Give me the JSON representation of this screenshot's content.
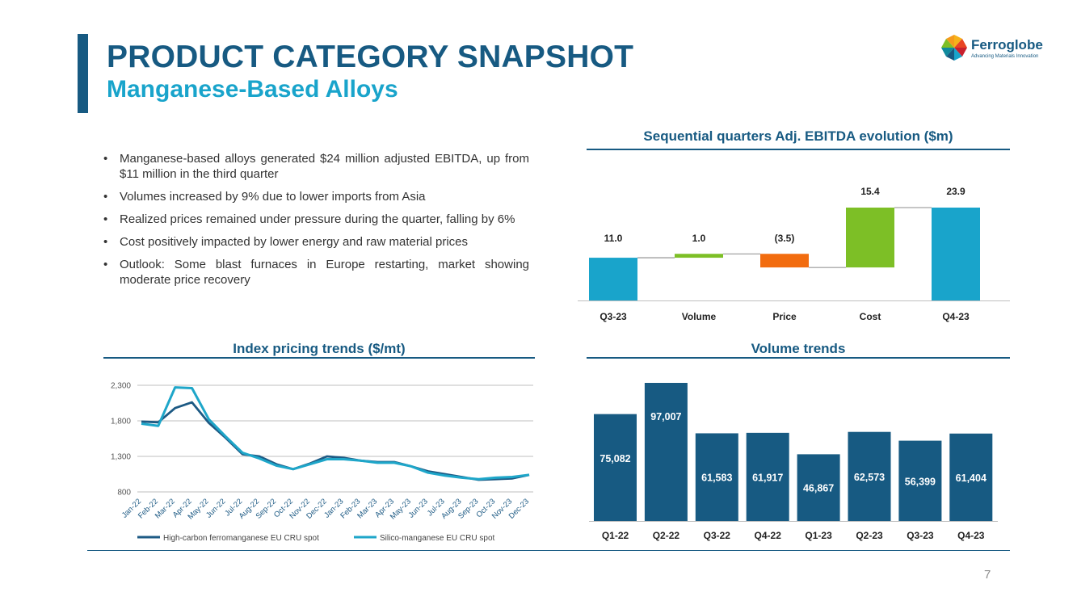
{
  "header": {
    "title": "PRODUCT CATEGORY SNAPSHOT",
    "subtitle": "Manganese-Based Alloys"
  },
  "logo": {
    "name": "Ferroglobe",
    "tagline": "Advancing Materials Innovation"
  },
  "bullets": [
    "Manganese-based alloys generated $24 million adjusted EBITDA, up from $11 million in the third quarter",
    "Volumes increased by 9% due to lower imports from Asia",
    "Realized prices remained under pressure during the quarter, falling by 6%",
    "Cost positively impacted by lower energy and raw material prices",
    "Outlook: Some blast furnaces in Europe restarting, market showing moderate price recovery"
  ],
  "page_number": "7",
  "colors": {
    "navy": "#175a82",
    "cyan": "#19a4cb",
    "green": "#7dbf26",
    "orange": "#f26c0f",
    "dark_series": "#1d5a84",
    "light_series": "#1ea6c9"
  },
  "chart_data": [
    {
      "type": "bar",
      "subtype": "waterfall",
      "title": "Sequential quarters Adj. EBITDA evolution ($m)",
      "categories": [
        "Q3-23",
        "Volume",
        "Price",
        "Cost",
        "Q4-23"
      ],
      "values": [
        11.0,
        1.0,
        -3.5,
        15.4,
        23.9
      ],
      "labels": [
        "11.0",
        "1.0",
        "(3.5)",
        "15.4",
        "23.9"
      ],
      "kinds": [
        "total",
        "delta",
        "delta",
        "delta",
        "total"
      ],
      "bar_colors": [
        "#19a4cb",
        "#7dbf26",
        "#f26c0f",
        "#7dbf26",
        "#19a4cb"
      ]
    },
    {
      "type": "line",
      "title": "Index pricing trends ($/mt)",
      "categories": [
        "Jan-22",
        "Feb-22",
        "Mar-22",
        "Apr-22",
        "May-22",
        "Jun-22",
        "Jul-22",
        "Aug-22",
        "Sep-22",
        "Oct-22",
        "Nov-22",
        "Dec-22",
        "Jan-23",
        "Feb-23",
        "Mar-23",
        "Apr-23",
        "May-23",
        "Jun-23",
        "Jul-23",
        "Aug-23",
        "Sep-23",
        "Oct-23",
        "Nov-23",
        "Dec-23"
      ],
      "series": [
        {
          "name": "High-carbon ferromanganese EU CRU spot",
          "color": "#1d5a84",
          "values": [
            1790,
            1780,
            1980,
            2060,
            1770,
            1560,
            1330,
            1300,
            1190,
            1120,
            1200,
            1300,
            1280,
            1240,
            1220,
            1220,
            1160,
            1090,
            1050,
            1010,
            970,
            980,
            990,
            1040
          ]
        },
        {
          "name": "Silico-manganese EU CRU spot",
          "color": "#1ea6c9",
          "values": [
            1760,
            1730,
            2270,
            2260,
            1820,
            1580,
            1350,
            1270,
            1170,
            1120,
            1190,
            1260,
            1260,
            1240,
            1210,
            1210,
            1160,
            1070,
            1030,
            1000,
            980,
            1000,
            1010,
            1040
          ]
        }
      ],
      "yticks": [
        "2,300",
        "1,800",
        "1,300",
        "800"
      ],
      "ytick_values": [
        2300,
        1800,
        1300,
        800
      ],
      "ylim": [
        800,
        2300
      ],
      "legend": "bottom"
    },
    {
      "type": "bar",
      "title": "Volume trends",
      "categories": [
        "Q1-22",
        "Q2-22",
        "Q3-22",
        "Q4-22",
        "Q1-23",
        "Q2-23",
        "Q3-23",
        "Q4-23"
      ],
      "values": [
        75082,
        97007,
        61583,
        61917,
        46867,
        62573,
        56399,
        61404
      ],
      "labels": [
        "75,082",
        "97,007",
        "61,583",
        "61,917",
        "46,867",
        "62,573",
        "56,399",
        "61,404"
      ],
      "color": "#175a82"
    }
  ]
}
